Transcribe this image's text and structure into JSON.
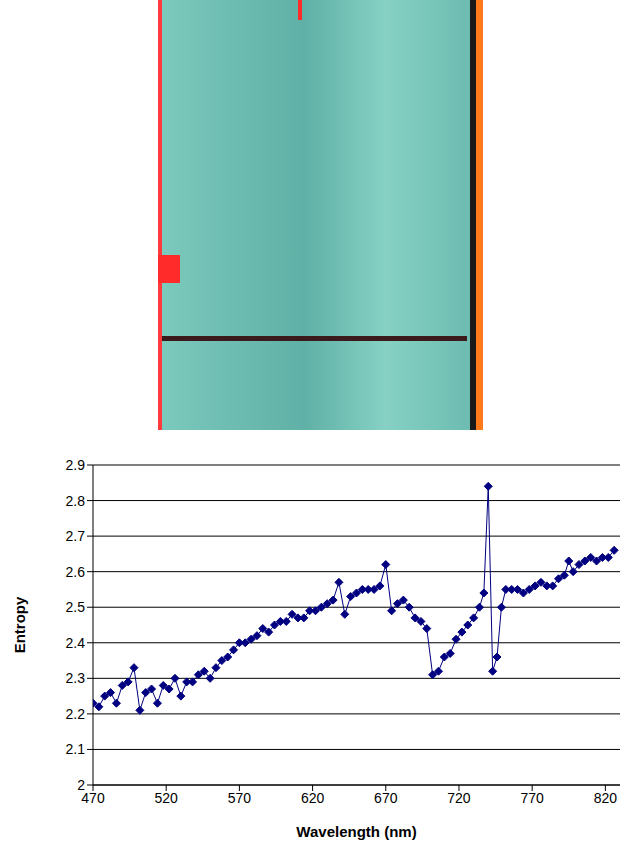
{
  "chart_data": {
    "type": "line",
    "xlabel": "Wavelength (nm)",
    "ylabel": "Entropy",
    "x": [
      470,
      474,
      478,
      482,
      486,
      490,
      494,
      498,
      502,
      506,
      510,
      514,
      518,
      522,
      526,
      530,
      534,
      538,
      542,
      546,
      550,
      554,
      558,
      562,
      566,
      570,
      574,
      578,
      582,
      586,
      590,
      594,
      598,
      602,
      606,
      610,
      614,
      618,
      622,
      626,
      630,
      634,
      638,
      642,
      646,
      650,
      654,
      658,
      662,
      666,
      670,
      674,
      678,
      682,
      686,
      690,
      694,
      698,
      702,
      706,
      710,
      714,
      718,
      722,
      726,
      730,
      734,
      737,
      740,
      743,
      746,
      749,
      752,
      756,
      760,
      764,
      768,
      772,
      776,
      780,
      784,
      788,
      792,
      795,
      798,
      802,
      806,
      810,
      814,
      818,
      822,
      826
    ],
    "values": [
      2.23,
      2.22,
      2.25,
      2.26,
      2.23,
      2.28,
      2.29,
      2.33,
      2.21,
      2.26,
      2.27,
      2.23,
      2.28,
      2.27,
      2.3,
      2.25,
      2.29,
      2.29,
      2.31,
      2.32,
      2.3,
      2.33,
      2.35,
      2.36,
      2.38,
      2.4,
      2.4,
      2.41,
      2.42,
      2.44,
      2.43,
      2.45,
      2.46,
      2.46,
      2.48,
      2.47,
      2.47,
      2.49,
      2.49,
      2.5,
      2.51,
      2.52,
      2.57,
      2.48,
      2.53,
      2.54,
      2.55,
      2.55,
      2.55,
      2.56,
      2.62,
      2.49,
      2.51,
      2.52,
      2.5,
      2.47,
      2.46,
      2.44,
      2.31,
      2.32,
      2.36,
      2.37,
      2.41,
      2.43,
      2.45,
      2.47,
      2.5,
      2.54,
      2.84,
      2.32,
      2.36,
      2.5,
      2.55,
      2.55,
      2.55,
      2.54,
      2.55,
      2.56,
      2.57,
      2.56,
      2.56,
      2.58,
      2.59,
      2.63,
      2.6,
      2.62,
      2.63,
      2.64,
      2.63,
      2.64,
      2.64,
      2.66
    ],
    "color": "#000080",
    "marker": "diamond",
    "xlim": [
      470,
      830
    ],
    "xticks": [
      470,
      520,
      570,
      620,
      670,
      720,
      770,
      820
    ],
    "ylim": [
      2,
      2.9
    ],
    "yticks": [
      2,
      2.1,
      2.2,
      2.3,
      2.4,
      2.5,
      2.6,
      2.7,
      2.8,
      2.9
    ],
    "grid": true
  }
}
